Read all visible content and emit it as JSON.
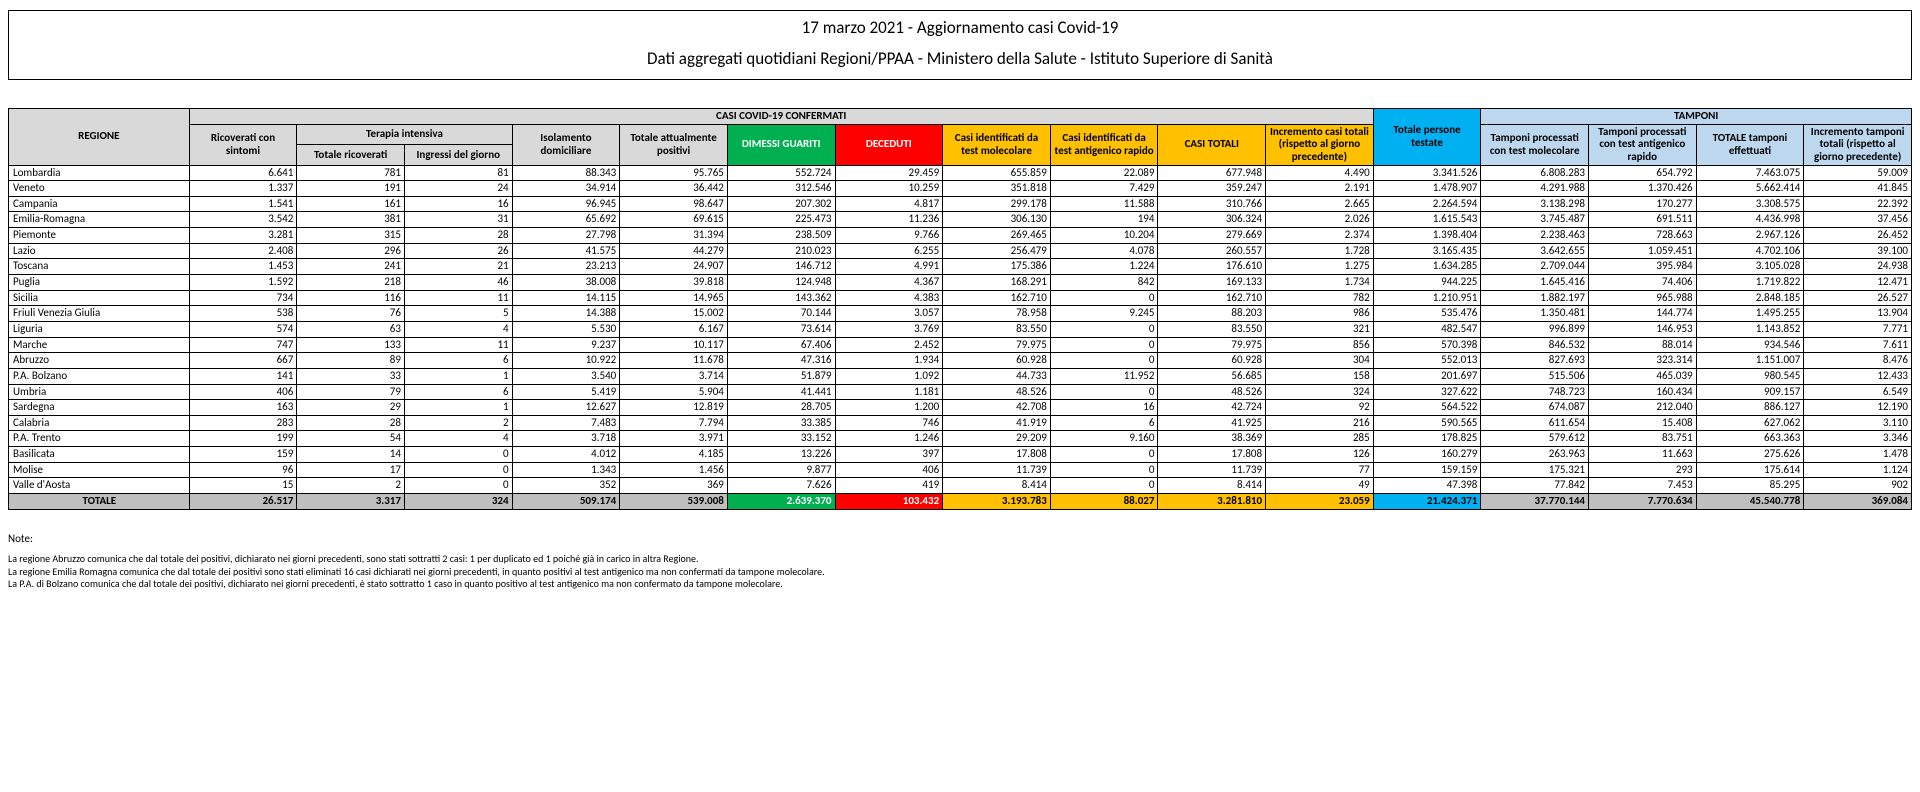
{
  "header": {
    "title": "17 marzo 2021 - Aggiornamento casi Covid-19",
    "subtitle": "Dati aggregati quotidiani Regioni/PPAA - Ministero della Salute - Istituto Superiore di Sanità"
  },
  "columns": {
    "regione": "REGIONE",
    "casi_conf": "CASI COVID-19 CONFERMATI",
    "ric_sintomi": "Ricoverati con sintomi",
    "terapia_int": "Terapia intensiva",
    "tot_ricoverati": "Totale ricoverati",
    "ingressi_giorno": "Ingressi del giorno",
    "isol_dom": "Isolamento domiciliare",
    "tot_att_pos": "Totale attualmente positivi",
    "dimessi": "DIMESSI GUARITI",
    "deceduti": "DECEDUTI",
    "casi_mol": "Casi identificati da test molecolare",
    "casi_ant": "Casi identificati da test antigenico rapido",
    "casi_tot": "CASI TOTALI",
    "incr_casi": "Incremento casi totali (rispetto al giorno precedente)",
    "tot_persone": "Totale persone testate",
    "tamponi": "TAMPONI",
    "tamp_mol": "Tamponi processati con test molecolare",
    "tamp_ant": "Tamponi processati con test antigenico rapido",
    "tot_tamp": "TOTALE tamponi effettuati",
    "incr_tamp": "Incremento tamponi totali (rispetto al giorno precedente)"
  },
  "rows": [
    {
      "r": "Lombardia",
      "v": [
        "6.641",
        "781",
        "81",
        "88.343",
        "95.765",
        "552.724",
        "29.459",
        "655.859",
        "22.089",
        "677.948",
        "4.490",
        "3.341.526",
        "6.808.283",
        "654.792",
        "7.463.075",
        "59.009"
      ]
    },
    {
      "r": "Veneto",
      "v": [
        "1.337",
        "191",
        "24",
        "34.914",
        "36.442",
        "312.546",
        "10.259",
        "351.818",
        "7.429",
        "359.247",
        "2.191",
        "1.478.907",
        "4.291.988",
        "1.370.426",
        "5.662.414",
        "41.845"
      ]
    },
    {
      "r": "Campania",
      "v": [
        "1.541",
        "161",
        "16",
        "96.945",
        "98.647",
        "207.302",
        "4.817",
        "299.178",
        "11.588",
        "310.766",
        "2.665",
        "2.264.594",
        "3.138.298",
        "170.277",
        "3.308.575",
        "22.392"
      ]
    },
    {
      "r": "Emilia-Romagna",
      "v": [
        "3.542",
        "381",
        "31",
        "65.692",
        "69.615",
        "225.473",
        "11.236",
        "306.130",
        "194",
        "306.324",
        "2.026",
        "1.615.543",
        "3.745.487",
        "691.511",
        "4.436.998",
        "37.456"
      ]
    },
    {
      "r": "Piemonte",
      "v": [
        "3.281",
        "315",
        "28",
        "27.798",
        "31.394",
        "238.509",
        "9.766",
        "269.465",
        "10.204",
        "279.669",
        "2.374",
        "1.398.404",
        "2.238.463",
        "728.663",
        "2.967.126",
        "26.452"
      ]
    },
    {
      "r": "Lazio",
      "v": [
        "2.408",
        "296",
        "26",
        "41.575",
        "44.279",
        "210.023",
        "6.255",
        "256.479",
        "4.078",
        "260.557",
        "1.728",
        "3.165.435",
        "3.642.655",
        "1.059.451",
        "4.702.106",
        "39.100"
      ]
    },
    {
      "r": "Toscana",
      "v": [
        "1.453",
        "241",
        "21",
        "23.213",
        "24.907",
        "146.712",
        "4.991",
        "175.386",
        "1.224",
        "176.610",
        "1.275",
        "1.634.285",
        "2.709.044",
        "395.984",
        "3.105.028",
        "24.938"
      ]
    },
    {
      "r": "Puglia",
      "v": [
        "1.592",
        "218",
        "46",
        "38.008",
        "39.818",
        "124.948",
        "4.367",
        "168.291",
        "842",
        "169.133",
        "1.734",
        "944.225",
        "1.645.416",
        "74.406",
        "1.719.822",
        "12.471"
      ]
    },
    {
      "r": "Sicilia",
      "v": [
        "734",
        "116",
        "11",
        "14.115",
        "14.965",
        "143.362",
        "4.383",
        "162.710",
        "0",
        "162.710",
        "782",
        "1.210.951",
        "1.882.197",
        "965.988",
        "2.848.185",
        "26.527"
      ]
    },
    {
      "r": "Friuli Venezia Giulia",
      "v": [
        "538",
        "76",
        "5",
        "14.388",
        "15.002",
        "70.144",
        "3.057",
        "78.958",
        "9.245",
        "88.203",
        "986",
        "535.476",
        "1.350.481",
        "144.774",
        "1.495.255",
        "13.904"
      ]
    },
    {
      "r": "Liguria",
      "v": [
        "574",
        "63",
        "4",
        "5.530",
        "6.167",
        "73.614",
        "3.769",
        "83.550",
        "0",
        "83.550",
        "321",
        "482.547",
        "996.899",
        "146.953",
        "1.143.852",
        "7.771"
      ]
    },
    {
      "r": "Marche",
      "v": [
        "747",
        "133",
        "11",
        "9.237",
        "10.117",
        "67.406",
        "2.452",
        "79.975",
        "0",
        "79.975",
        "856",
        "570.398",
        "846.532",
        "88.014",
        "934.546",
        "7.611"
      ]
    },
    {
      "r": "Abruzzo",
      "v": [
        "667",
        "89",
        "6",
        "10.922",
        "11.678",
        "47.316",
        "1.934",
        "60.928",
        "0",
        "60.928",
        "304",
        "552.013",
        "827.693",
        "323.314",
        "1.151.007",
        "8.476"
      ]
    },
    {
      "r": "P.A. Bolzano",
      "v": [
        "141",
        "33",
        "1",
        "3.540",
        "3.714",
        "51.879",
        "1.092",
        "44.733",
        "11.952",
        "56.685",
        "158",
        "201.697",
        "515.506",
        "465.039",
        "980.545",
        "12.433"
      ]
    },
    {
      "r": "Umbria",
      "v": [
        "406",
        "79",
        "6",
        "5.419",
        "5.904",
        "41.441",
        "1.181",
        "48.526",
        "0",
        "48.526",
        "324",
        "327.622",
        "748.723",
        "160.434",
        "909.157",
        "6.549"
      ]
    },
    {
      "r": "Sardegna",
      "v": [
        "163",
        "29",
        "1",
        "12.627",
        "12.819",
        "28.705",
        "1.200",
        "42.708",
        "16",
        "42.724",
        "92",
        "564.522",
        "674.087",
        "212.040",
        "886.127",
        "12.190"
      ]
    },
    {
      "r": "Calabria",
      "v": [
        "283",
        "28",
        "2",
        "7.483",
        "7.794",
        "33.385",
        "746",
        "41.919",
        "6",
        "41.925",
        "216",
        "590.565",
        "611.654",
        "15.408",
        "627.062",
        "3.110"
      ]
    },
    {
      "r": "P.A. Trento",
      "v": [
        "199",
        "54",
        "4",
        "3.718",
        "3.971",
        "33.152",
        "1.246",
        "29.209",
        "9.160",
        "38.369",
        "285",
        "178.825",
        "579.612",
        "83.751",
        "663.363",
        "3.346"
      ]
    },
    {
      "r": "Basilicata",
      "v": [
        "159",
        "14",
        "0",
        "4.012",
        "4.185",
        "13.226",
        "397",
        "17.808",
        "0",
        "17.808",
        "126",
        "160.279",
        "263.963",
        "11.663",
        "275.626",
        "1.478"
      ]
    },
    {
      "r": "Molise",
      "v": [
        "96",
        "17",
        "0",
        "1.343",
        "1.456",
        "9.877",
        "406",
        "11.739",
        "0",
        "11.739",
        "77",
        "159.159",
        "175.321",
        "293",
        "175.614",
        "1.124"
      ]
    },
    {
      "r": "Valle d'Aosta",
      "v": [
        "15",
        "2",
        "0",
        "352",
        "369",
        "7.626",
        "419",
        "8.414",
        "0",
        "8.414",
        "49",
        "47.398",
        "77.842",
        "7.453",
        "85.295",
        "902"
      ]
    }
  ],
  "total": {
    "label": "TOTALE",
    "v": [
      "26.517",
      "3.317",
      "324",
      "509.174",
      "539.008",
      "2.639.370",
      "103.432",
      "3.193.783",
      "88.027",
      "3.281.810",
      "23.059",
      "21.424.371",
      "37.770.144",
      "7.770.634",
      "45.540.778",
      "369.084"
    ]
  },
  "notes": {
    "title": "Note:",
    "lines": [
      "La regione Abruzzo comunica che dal totale dei positivi, dichiarato nei giorni precedenti, sono stati sottratti 2 casi: 1 per duplicato ed 1 poiché già in carico in altra Regione.",
      "La regione Emilia Romagna comunica che dal totale dei positivi sono stati eliminati 16 casi dichiarati nei giorni precedenti, in quanto positivi al test antigenico ma non confermati da tampone molecolare.",
      "La P.A. di Bolzano comunica che dal totale dei positivi, dichiarato nei giorni precedenti, è stato sottratto 1 caso in quanto positivo al test antigenico ma non confermato da tampone molecolare."
    ]
  },
  "colors": {
    "grey": "#d9d9d9",
    "darkgrey": "#bfbfbf",
    "blue": "#00b0f0",
    "ltblue": "#bdd7ee",
    "green": "#00b050",
    "red": "#ff0000",
    "orange": "#ffc000"
  }
}
